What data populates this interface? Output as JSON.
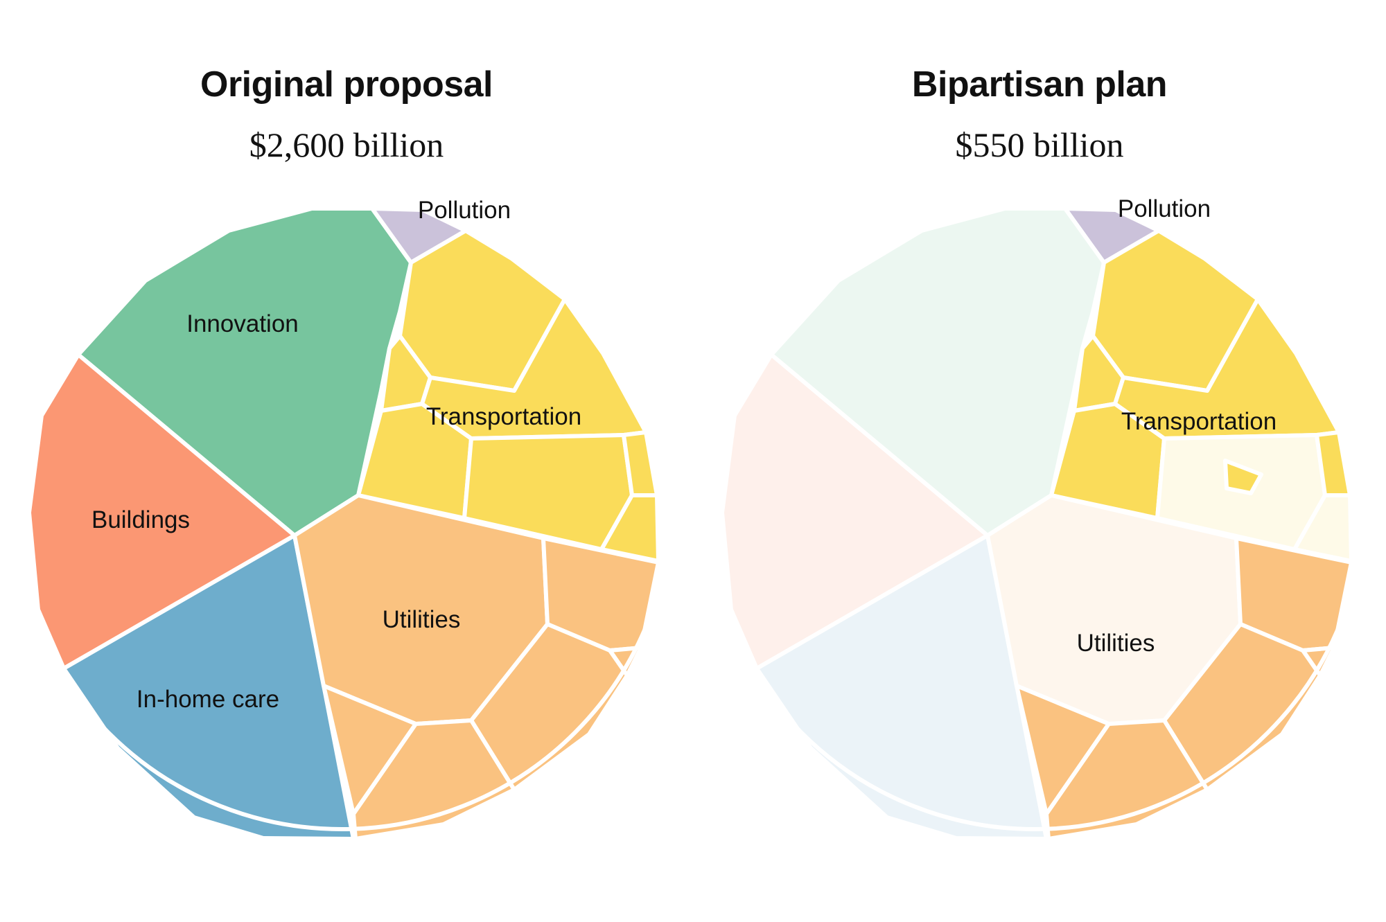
{
  "chart_data": [
    {
      "type": "voronoi",
      "title": "Original proposal",
      "total_label": "$2,600 billion",
      "total_billion": 2600,
      "categories": [
        "Innovation",
        "Buildings",
        "In-home care",
        "Utilities",
        "Transportation",
        "Pollution"
      ],
      "colors": {
        "Innovation": "#77c59e",
        "Buildings": "#fb9773",
        "In-home care": "#6eadcc",
        "Utilities": "#fac280",
        "Transportation": "#fadc5a",
        "Pollution": "#cbc2da"
      },
      "included": [
        "Innovation",
        "Buildings",
        "In-home care",
        "Utilities",
        "Transportation",
        "Pollution"
      ]
    },
    {
      "type": "voronoi",
      "title": "Bipartisan plan",
      "total_label": "$550 billion",
      "total_billion": 550,
      "categories": [
        "Utilities",
        "Transportation",
        "Pollution"
      ],
      "colors": {
        "Innovation": "#77c59e",
        "Buildings": "#fb9773",
        "In-home care": "#6eadcc",
        "Utilities": "#fac280",
        "Transportation": "#fadc5a",
        "Pollution": "#cbc2da"
      },
      "included": [
        "Utilities",
        "Transportation",
        "Pollution"
      ]
    }
  ]
}
